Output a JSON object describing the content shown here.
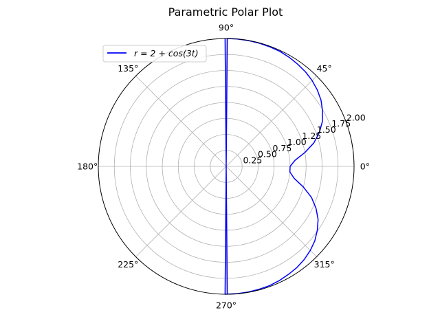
{
  "chart_data": {
    "type": "line",
    "projection": "polar",
    "title": "Parametric Polar Plot",
    "angle_unit": "degrees",
    "r_range": [
      0,
      2
    ],
    "r_ticks": [
      "0.25",
      "0.50",
      "0.75",
      "1.00",
      "1.25",
      "1.50",
      "1.75",
      "2.00"
    ],
    "theta_ticks": [
      "0°",
      "45°",
      "90°",
      "135°",
      "180°",
      "225°",
      "270°",
      "315°"
    ],
    "grid": true,
    "legend_placement": "top-left",
    "series": [
      {
        "name": "r = 2 + cos(3t)",
        "color": "#0000ff",
        "theta": [
          0,
          5,
          10,
          15,
          20,
          25,
          30,
          35,
          40,
          45,
          50,
          55,
          60,
          65,
          70,
          75,
          80,
          85,
          89.5,
          89.5,
          90.5,
          90.5,
          270.5,
          270.5,
          269.5,
          269.5,
          275,
          280,
          285,
          290,
          295,
          300,
          305,
          310,
          315,
          320,
          325,
          330,
          335,
          340,
          345,
          350,
          355,
          360
        ],
        "r": [
          1.0,
          1.08,
          1.25,
          1.42,
          1.55,
          1.66,
          1.74,
          1.81,
          1.86,
          1.9,
          1.93,
          1.95,
          1.97,
          1.985,
          1.99,
          1.995,
          1.998,
          2.0,
          2.0,
          0.0,
          0.0,
          2.0,
          2.0,
          0.0,
          0.0,
          2.0,
          1.998,
          1.995,
          1.99,
          1.985,
          1.97,
          1.95,
          1.93,
          1.9,
          1.86,
          1.81,
          1.74,
          1.66,
          1.55,
          1.42,
          1.25,
          1.08,
          1.0,
          1.0
        ]
      }
    ]
  },
  "colors": {
    "grid": "#b0b0b0",
    "frame": "#000000",
    "line": "#0000ff"
  }
}
